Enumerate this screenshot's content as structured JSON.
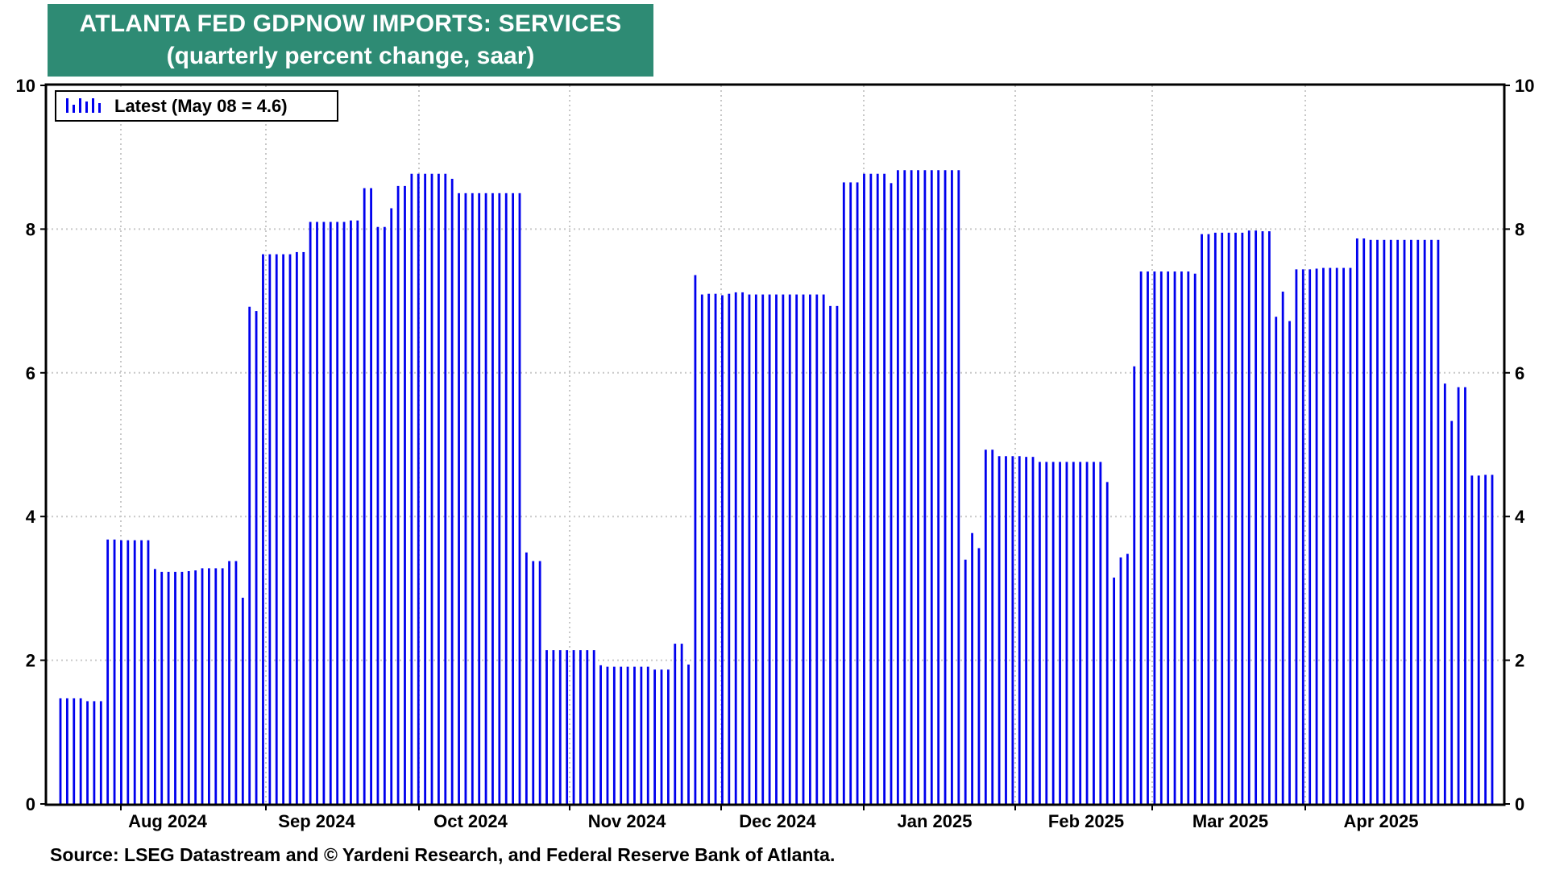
{
  "title": "ATLANTA FED GDPNOW IMPORTS: SERVICES",
  "subtitle": "(quarterly percent change, saar)",
  "source": "Source: LSEG Datastream and © Yardeni Research, and Federal Reserve Bank of Atlanta.",
  "colors": {
    "title_bg": "#2e8b74",
    "bars": "#0000ee",
    "grid": "#c8c8c8"
  },
  "chart_data": {
    "type": "bar",
    "title": "ATLANTA FED GDPNOW IMPORTS: SERVICES",
    "subtitle": "(quarterly percent change, saar)",
    "ylim": [
      0,
      10
    ],
    "yticks": [
      "0",
      "2",
      "4",
      "6",
      "8",
      "10"
    ],
    "xlabels": [
      "Aug 2024",
      "Sep 2024",
      "Oct 2024",
      "Nov 2024",
      "Dec 2024",
      "Jan 2025",
      "Feb 2025",
      "Mar 2025",
      "Apr 2025"
    ],
    "grid": true,
    "legend": {
      "label": "Latest (May 08 = 4.6)",
      "position": "top-left"
    },
    "series": [
      {
        "name": "Latest (May 08 = 4.6)",
        "values": [
          1.47,
          1.47,
          1.47,
          1.47,
          1.43,
          1.43,
          1.43,
          3.68,
          3.68,
          3.67,
          3.67,
          3.67,
          3.67,
          3.67,
          3.27,
          3.23,
          3.23,
          3.23,
          3.23,
          3.24,
          3.25,
          3.28,
          3.28,
          3.28,
          3.28,
          3.38,
          3.38,
          2.87,
          6.92,
          6.86,
          7.65,
          7.65,
          7.65,
          7.65,
          7.65,
          7.68,
          7.68,
          8.1,
          8.1,
          8.1,
          8.1,
          8.1,
          8.1,
          8.12,
          8.12,
          8.57,
          8.57,
          8.03,
          8.03,
          8.29,
          8.6,
          8.6,
          8.77,
          8.77,
          8.77,
          8.77,
          8.77,
          8.77,
          8.7,
          8.5,
          8.5,
          8.5,
          8.5,
          8.5,
          8.5,
          8.5,
          8.5,
          8.5,
          8.5,
          3.5,
          3.38,
          3.38,
          2.14,
          2.14,
          2.14,
          2.14,
          2.14,
          2.14,
          2.14,
          2.14,
          1.93,
          1.91,
          1.91,
          1.91,
          1.91,
          1.91,
          1.91,
          1.91,
          1.87,
          1.87,
          1.87,
          2.23,
          2.23,
          1.94,
          7.36,
          7.09,
          7.1,
          7.1,
          7.08,
          7.1,
          7.12,
          7.12,
          7.09,
          7.09,
          7.09,
          7.09,
          7.09,
          7.09,
          7.09,
          7.09,
          7.09,
          7.09,
          7.09,
          7.09,
          6.93,
          6.93,
          8.65,
          8.65,
          8.65,
          8.77,
          8.77,
          8.77,
          8.77,
          8.64,
          8.82,
          8.82,
          8.82,
          8.82,
          8.82,
          8.82,
          8.82,
          8.82,
          8.82,
          8.82,
          3.4,
          3.77,
          3.56,
          4.93,
          4.93,
          4.84,
          4.84,
          4.84,
          4.84,
          4.83,
          4.83,
          4.76,
          4.76,
          4.76,
          4.76,
          4.76,
          4.76,
          4.76,
          4.76,
          4.76,
          4.76,
          4.48,
          3.15,
          3.43,
          3.48,
          6.09,
          7.41,
          7.41,
          7.41,
          7.41,
          7.41,
          7.41,
          7.41,
          7.41,
          7.38,
          7.93,
          7.93,
          7.95,
          7.95,
          7.95,
          7.95,
          7.95,
          7.98,
          7.98,
          7.97,
          7.97,
          6.78,
          7.13,
          6.72,
          7.44,
          7.44,
          7.44,
          7.45,
          7.46,
          7.46,
          7.46,
          7.46,
          7.46,
          7.87,
          7.87,
          7.85,
          7.85,
          7.85,
          7.85,
          7.85,
          7.85,
          7.85,
          7.85,
          7.85,
          7.85,
          7.85,
          5.85,
          5.33,
          5.8,
          5.8,
          4.57,
          4.57,
          4.58,
          4.58
        ]
      }
    ]
  }
}
